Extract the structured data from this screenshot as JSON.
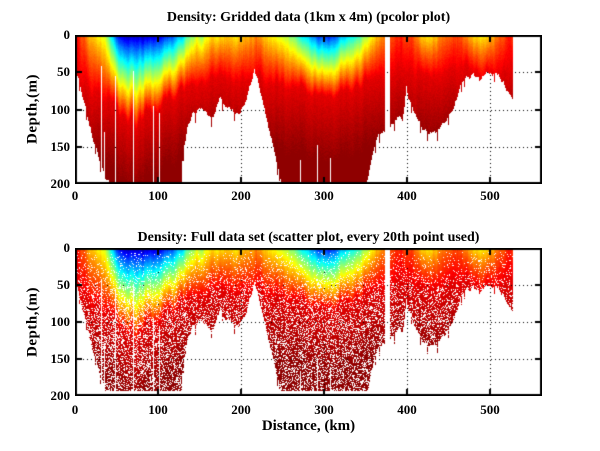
{
  "figure": {
    "background": "#ffffff",
    "axis_color": "#000000",
    "grid_style": "dotted",
    "colormap": "jet"
  },
  "chart_data": [
    {
      "type": "heatmap",
      "title": "Density: Gridded data (1km x 4m) (pcolor plot)",
      "xlabel": "",
      "ylabel": "Depth,(m)",
      "x_ticks": [
        0,
        100,
        200,
        300,
        400,
        500
      ],
      "y_ticks": [
        0,
        50,
        100,
        150,
        200
      ],
      "xlim": [
        0,
        562
      ],
      "ylim": [
        0,
        200
      ],
      "y_axis_reversed": true,
      "grid": true,
      "legend": "none"
    },
    {
      "type": "scatter",
      "title": "Density: Full data set (scatter plot, every 20th point used)",
      "xlabel": "Distance, (km)",
      "ylabel": "Depth,(m)",
      "x_ticks": [
        0,
        100,
        200,
        300,
        400,
        500
      ],
      "y_ticks": [
        0,
        50,
        100,
        150,
        200
      ],
      "xlim": [
        0,
        562
      ],
      "ylim": [
        0,
        200
      ],
      "y_axis_reversed": true,
      "grid": true,
      "legend": "none",
      "marker_gap_fraction_max": 0.3,
      "max_point_depth_m": 193
    }
  ],
  "density_field": {
    "x_max_data_km": 527,
    "surface_index_profile": [
      [
        0,
        0.87
      ],
      [
        6,
        0.84
      ],
      [
        12,
        0.76
      ],
      [
        18,
        0.68
      ],
      [
        26,
        0.62
      ],
      [
        34,
        0.6
      ],
      [
        40,
        0.5
      ],
      [
        45,
        0.32
      ],
      [
        50,
        0.16
      ],
      [
        56,
        0.07
      ],
      [
        64,
        0.03
      ],
      [
        78,
        0.02
      ],
      [
        90,
        0.04
      ],
      [
        100,
        0.08
      ],
      [
        112,
        0.13
      ],
      [
        122,
        0.22
      ],
      [
        130,
        0.32
      ],
      [
        138,
        0.48
      ],
      [
        146,
        0.57
      ],
      [
        153,
        0.52
      ],
      [
        160,
        0.58
      ],
      [
        168,
        0.63
      ],
      [
        178,
        0.66
      ],
      [
        188,
        0.62
      ],
      [
        198,
        0.64
      ],
      [
        208,
        0.68
      ],
      [
        218,
        0.72
      ],
      [
        228,
        0.67
      ],
      [
        238,
        0.63
      ],
      [
        248,
        0.58
      ],
      [
        256,
        0.54
      ],
      [
        264,
        0.46
      ],
      [
        272,
        0.36
      ],
      [
        280,
        0.28
      ],
      [
        288,
        0.2
      ],
      [
        296,
        0.14
      ],
      [
        305,
        0.13
      ],
      [
        313,
        0.2
      ],
      [
        322,
        0.27
      ],
      [
        332,
        0.33
      ],
      [
        342,
        0.42
      ],
      [
        352,
        0.55
      ],
      [
        360,
        0.64
      ],
      [
        368,
        0.71
      ],
      [
        376,
        0.76
      ],
      [
        384,
        0.8
      ],
      [
        392,
        0.84
      ],
      [
        400,
        0.82
      ],
      [
        408,
        0.78
      ],
      [
        416,
        0.68
      ],
      [
        424,
        0.64
      ],
      [
        432,
        0.66
      ],
      [
        440,
        0.72
      ],
      [
        450,
        0.78
      ],
      [
        460,
        0.8
      ],
      [
        470,
        0.74
      ],
      [
        480,
        0.67
      ],
      [
        490,
        0.63
      ],
      [
        500,
        0.68
      ],
      [
        508,
        0.74
      ],
      [
        516,
        0.8
      ],
      [
        527,
        0.83
      ]
    ],
    "pycnocline_depth_m": [
      [
        0,
        55
      ],
      [
        15,
        68
      ],
      [
        30,
        80
      ],
      [
        45,
        92
      ],
      [
        60,
        105
      ],
      [
        75,
        115
      ],
      [
        90,
        112
      ],
      [
        105,
        95
      ],
      [
        120,
        82
      ],
      [
        135,
        70
      ],
      [
        150,
        62
      ],
      [
        170,
        56
      ],
      [
        190,
        60
      ],
      [
        210,
        56
      ],
      [
        230,
        62
      ],
      [
        250,
        66
      ],
      [
        270,
        72
      ],
      [
        290,
        78
      ],
      [
        310,
        82
      ],
      [
        330,
        76
      ],
      [
        350,
        66
      ],
      [
        370,
        58
      ],
      [
        390,
        46
      ],
      [
        410,
        52
      ],
      [
        430,
        56
      ],
      [
        450,
        50
      ],
      [
        470,
        46
      ],
      [
        490,
        56
      ],
      [
        510,
        50
      ],
      [
        527,
        46
      ]
    ],
    "seafloor_depth_m": [
      [
        0,
        52
      ],
      [
        4,
        60
      ],
      [
        8,
        78
      ],
      [
        14,
        105
      ],
      [
        20,
        132
      ],
      [
        26,
        152
      ],
      [
        30,
        170
      ],
      [
        36,
        188
      ],
      [
        42,
        200
      ],
      [
        48,
        210
      ],
      [
        126,
        210
      ],
      [
        131,
        155
      ],
      [
        136,
        122
      ],
      [
        142,
        104
      ],
      [
        150,
        97
      ],
      [
        157,
        101
      ],
      [
        163,
        113
      ],
      [
        169,
        104
      ],
      [
        175,
        83
      ],
      [
        180,
        95
      ],
      [
        188,
        101
      ],
      [
        196,
        109
      ],
      [
        203,
        96
      ],
      [
        209,
        76
      ],
      [
        213,
        60
      ],
      [
        216,
        48
      ],
      [
        219,
        56
      ],
      [
        223,
        80
      ],
      [
        228,
        97
      ],
      [
        233,
        122
      ],
      [
        238,
        147
      ],
      [
        244,
        177
      ],
      [
        250,
        205
      ],
      [
        254,
        212
      ],
      [
        347,
        212
      ],
      [
        352,
        196
      ],
      [
        356,
        172
      ],
      [
        360,
        150
      ],
      [
        364,
        137
      ],
      [
        371,
        131
      ],
      [
        377,
        133
      ],
      [
        381,
        119
      ],
      [
        389,
        111
      ],
      [
        394,
        116
      ],
      [
        397,
        92
      ],
      [
        399,
        66
      ],
      [
        401,
        80
      ],
      [
        405,
        95
      ],
      [
        411,
        110
      ],
      [
        419,
        126
      ],
      [
        427,
        133
      ],
      [
        435,
        131
      ],
      [
        443,
        119
      ],
      [
        451,
        108
      ],
      [
        459,
        86
      ],
      [
        465,
        63
      ],
      [
        471,
        56
      ],
      [
        479,
        52
      ],
      [
        487,
        61
      ],
      [
        494,
        53
      ],
      [
        504,
        50
      ],
      [
        511,
        55
      ],
      [
        517,
        68
      ],
      [
        523,
        80
      ],
      [
        527,
        86
      ]
    ],
    "data_gap_columns_km": [
      [
        30.7,
        32.0,
        42
      ],
      [
        34.5,
        35.8,
        130
      ],
      [
        48.6,
        49.9,
        55
      ],
      [
        69.2,
        70.5,
        48
      ],
      [
        93.3,
        94.6,
        95
      ],
      [
        101.5,
        102.8,
        105
      ],
      [
        270.5,
        271.8,
        168
      ],
      [
        291.3,
        292.6,
        148
      ],
      [
        306.3,
        307.6,
        165
      ],
      [
        372.8,
        379.2,
        0
      ]
    ],
    "colormap_stops": [
      [
        0.0,
        0,
        0,
        128
      ],
      [
        0.125,
        0,
        0,
        255
      ],
      [
        0.375,
        0,
        255,
        255
      ],
      [
        0.625,
        255,
        255,
        0
      ],
      [
        0.875,
        255,
        0,
        0
      ],
      [
        1.0,
        128,
        0,
        0
      ]
    ]
  }
}
